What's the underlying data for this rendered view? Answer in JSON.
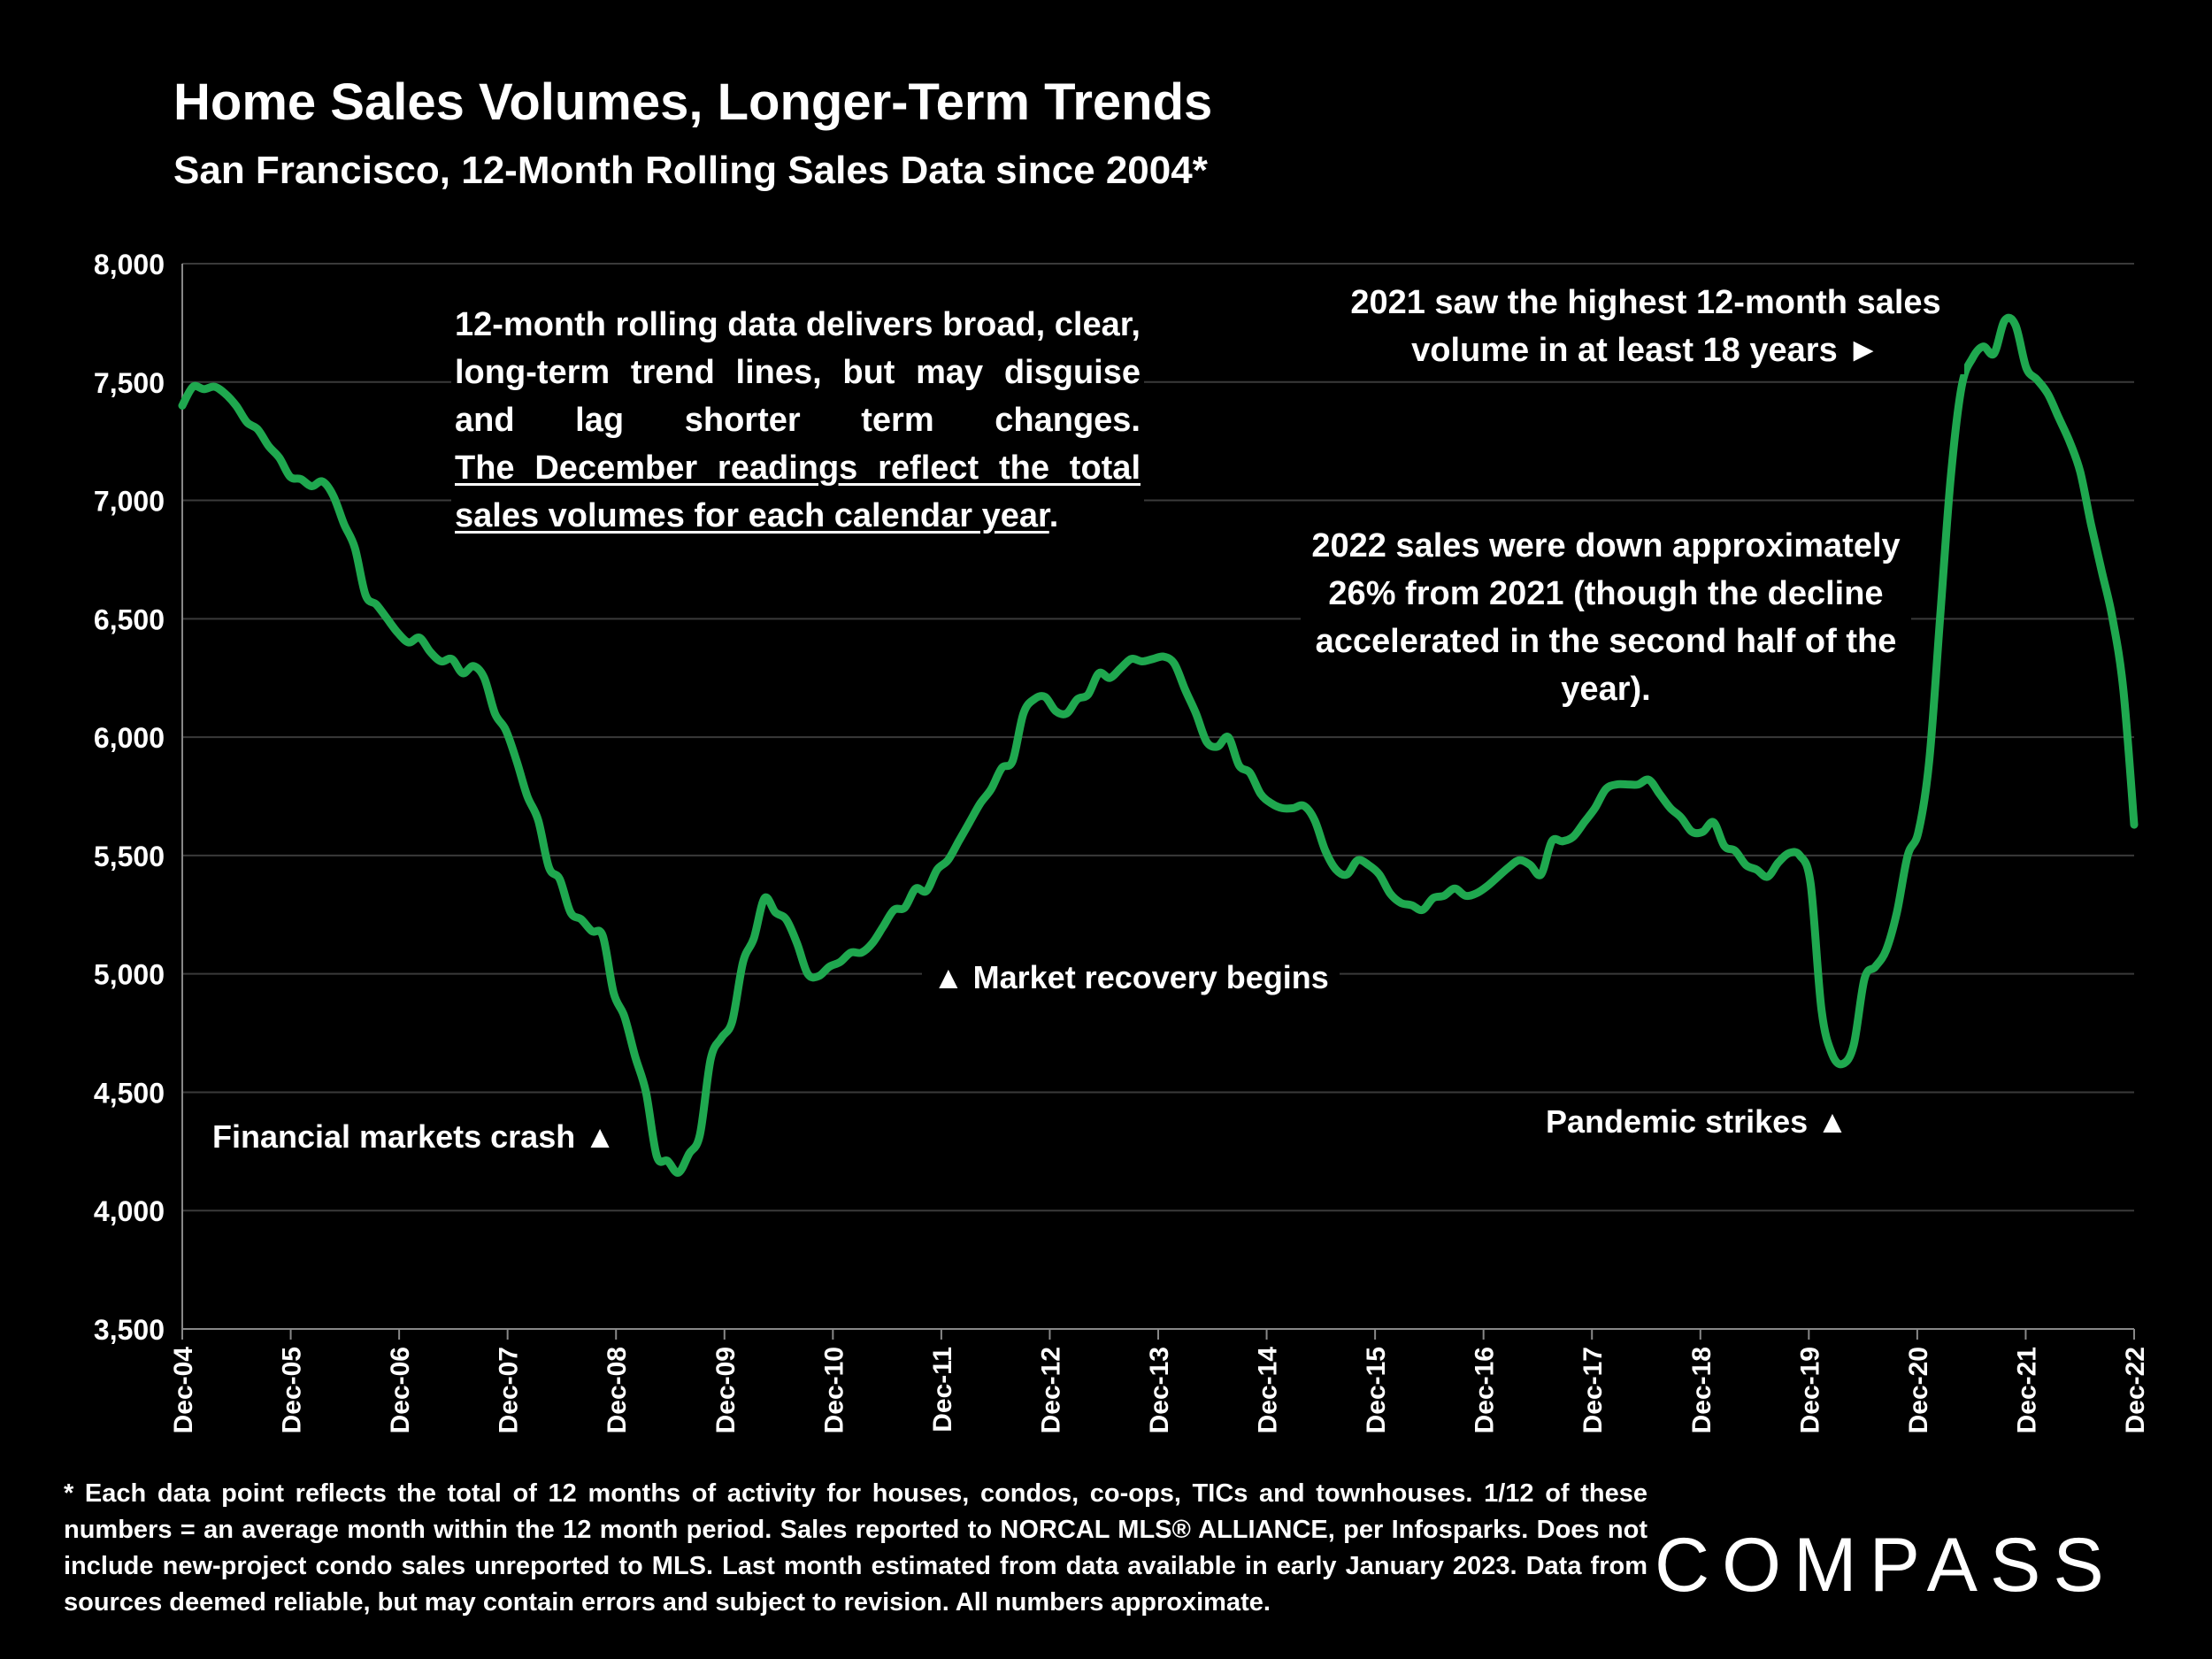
{
  "title": "Home Sales Volumes, Longer-Term Trends",
  "subtitle": "San Francisco, 12-Month Rolling Sales Data since 2004*",
  "notes": {
    "left_part1": "12-month rolling data delivers broad, clear, long-term trend lines, but may disguise and lag shorter term changes.",
    "left_part2_underlined": "The December readings reflect the total sales volumes for each calendar year",
    "left_part3": ".",
    "top_right": "2021 saw the highest 12-month sales volume in at least 18 years ►",
    "mid_right": "2022 sales were down approximately 26% from 2021 (though the decline accelerated in the second half of the year)."
  },
  "annotations": {
    "crash": "Financial markets crash ▲",
    "recovery": "▲  Market recovery begins",
    "pandemic": "Pandemic strikes ▲"
  },
  "footnote": "* Each data point reflects the total of 12 months of activity for houses, condos, co-ops, TICs and townhouses. 1/12 of these numbers = an average month within the 12 month period. Sales reported to NORCAL MLS® ALLIANCE, per Infosparks. Does not include new-project condo sales unreported to MLS. Last month estimated from data available in early January 2023. Data from sources deemed reliable, but may contain errors and subject to revision. All numbers approximate.",
  "logo": "COMPASS",
  "colors": {
    "line": "#1fa84f",
    "background": "#000000",
    "grid": "#3a3a3a",
    "text": "#ffffff"
  },
  "chart_data": {
    "type": "line",
    "title": "Home Sales Volumes, Longer-Term Trends",
    "subtitle": "San Francisco, 12-Month Rolling Sales Data since 2004*",
    "xlabel": "",
    "ylabel": "",
    "ylim": [
      3500,
      8000
    ],
    "yticks": [
      3500,
      4000,
      4500,
      5000,
      5500,
      6000,
      6500,
      7000,
      7500,
      8000
    ],
    "ytick_labels": [
      "3,500",
      "4,000",
      "4,500",
      "5,000",
      "5,500",
      "6,000",
      "6,500",
      "7,000",
      "7,500",
      "8,000"
    ],
    "xtick_labels": [
      "Dec-04",
      "Dec-05",
      "Dec-06",
      "Dec-07",
      "Dec-08",
      "Dec-09",
      "Dec-10",
      "Dec-11",
      "Dec-12",
      "Dec-13",
      "Dec-14",
      "Dec-15",
      "Dec-16",
      "Dec-17",
      "Dec-18",
      "Dec-19",
      "Dec-20",
      "Dec-21",
      "Dec-22"
    ],
    "grid": true,
    "series": [
      {
        "x_start": "Dec-04",
        "x_end": "Dec-22",
        "frequency": "monthly",
        "values": [
          7400,
          7480,
          7470,
          7480,
          7450,
          7400,
          7330,
          7300,
          7230,
          7180,
          7100,
          7090,
          7060,
          7080,
          7020,
          6900,
          6800,
          6600,
          6560,
          6500,
          6440,
          6400,
          6420,
          6360,
          6320,
          6330,
          6270,
          6300,
          6250,
          6100,
          6030,
          5900,
          5750,
          5650,
          5450,
          5400,
          5260,
          5230,
          5180,
          5160,
          4920,
          4820,
          4650,
          4500,
          4230,
          4210,
          4160,
          4240,
          4320,
          4640,
          4730,
          4800,
          5050,
          5150,
          5320,
          5260,
          5230,
          5130,
          5000,
          4990,
          5030,
          5050,
          5090,
          5090,
          5130,
          5200,
          5270,
          5280,
          5360,
          5350,
          5440,
          5480,
          5560,
          5640,
          5720,
          5780,
          5870,
          5900,
          6100,
          6160,
          6170,
          6110,
          6100,
          6160,
          6180,
          6270,
          6250,
          6290,
          6330,
          6320,
          6330,
          6340,
          6310,
          6200,
          6100,
          5980,
          5960,
          6000,
          5880,
          5850,
          5760,
          5720,
          5700,
          5700,
          5710,
          5650,
          5520,
          5440,
          5420,
          5480,
          5460,
          5420,
          5340,
          5300,
          5290,
          5270,
          5320,
          5330,
          5360,
          5330,
          5340,
          5370,
          5410,
          5450,
          5480,
          5460,
          5420,
          5560,
          5560,
          5580,
          5640,
          5700,
          5780,
          5800,
          5800,
          5800,
          5820,
          5760,
          5700,
          5660,
          5600,
          5600,
          5640,
          5540,
          5520,
          5460,
          5440,
          5410,
          5470,
          5510,
          5500,
          5380,
          4850,
          4660,
          4620,
          4700,
          4980,
          5030,
          5100,
          5260,
          5500,
          5600,
          5900,
          6500,
          7100,
          7480,
          7600,
          7650,
          7620,
          7760,
          7740,
          7560,
          7510,
          7450,
          7350,
          7250,
          7120,
          6900,
          6700,
          6500,
          6200,
          5630
        ]
      }
    ],
    "annotations": [
      "Financial markets crash ▲",
      "▲  Market recovery begins",
      "Pandemic strikes ▲",
      "2021 saw the highest 12-month sales volume in at least 18 years ►",
      "2022 sales were down approximately 26% from 2021 (though the decline accelerated in the second half of the year)."
    ]
  }
}
